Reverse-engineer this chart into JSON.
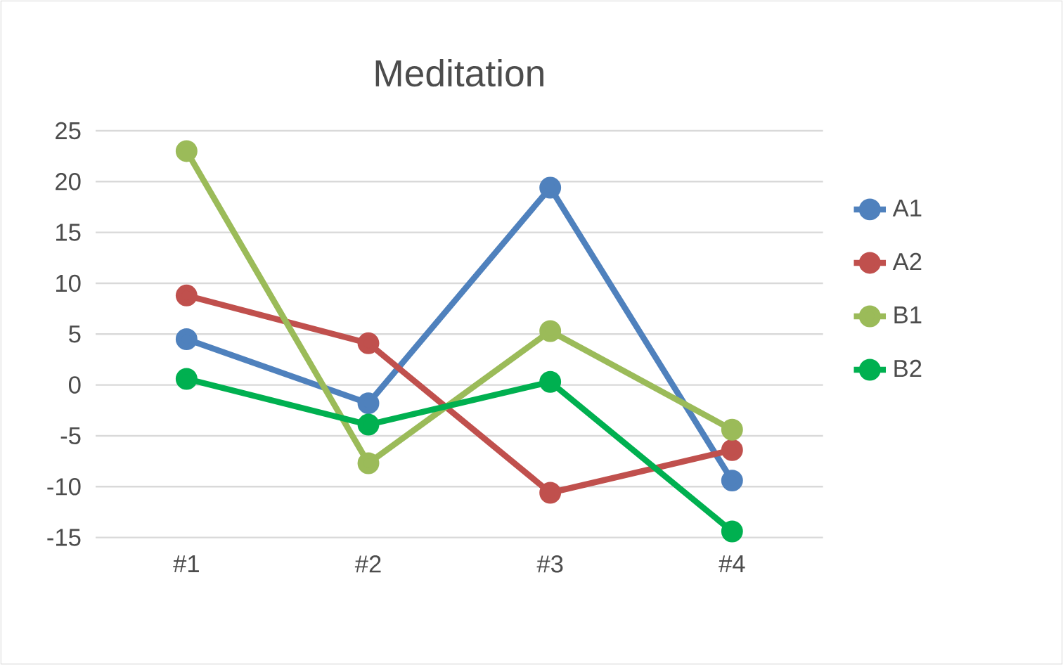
{
  "chart_data": {
    "type": "line",
    "title": "Meditation",
    "categories": [
      "#1",
      "#2",
      "#3",
      "#4"
    ],
    "series": [
      {
        "name": "A1",
        "color": "#4f81bd",
        "values": [
          4.5,
          -1.8,
          19.4,
          -9.4
        ]
      },
      {
        "name": "A2",
        "color": "#c0504d",
        "values": [
          8.8,
          4.1,
          -10.6,
          -6.4
        ]
      },
      {
        "name": "B1",
        "color": "#9bbb59",
        "values": [
          23.0,
          -7.7,
          5.3,
          -4.4
        ]
      },
      {
        "name": "B2",
        "color": "#00b050",
        "values": [
          0.6,
          -3.9,
          0.3,
          -14.4
        ]
      }
    ],
    "ylim": [
      -15,
      25
    ],
    "yticks": [
      -15,
      -10,
      -5,
      0,
      5,
      10,
      15,
      20,
      25
    ],
    "grid": "y",
    "legend": "right",
    "marker": "circle",
    "line_style": "solid"
  }
}
